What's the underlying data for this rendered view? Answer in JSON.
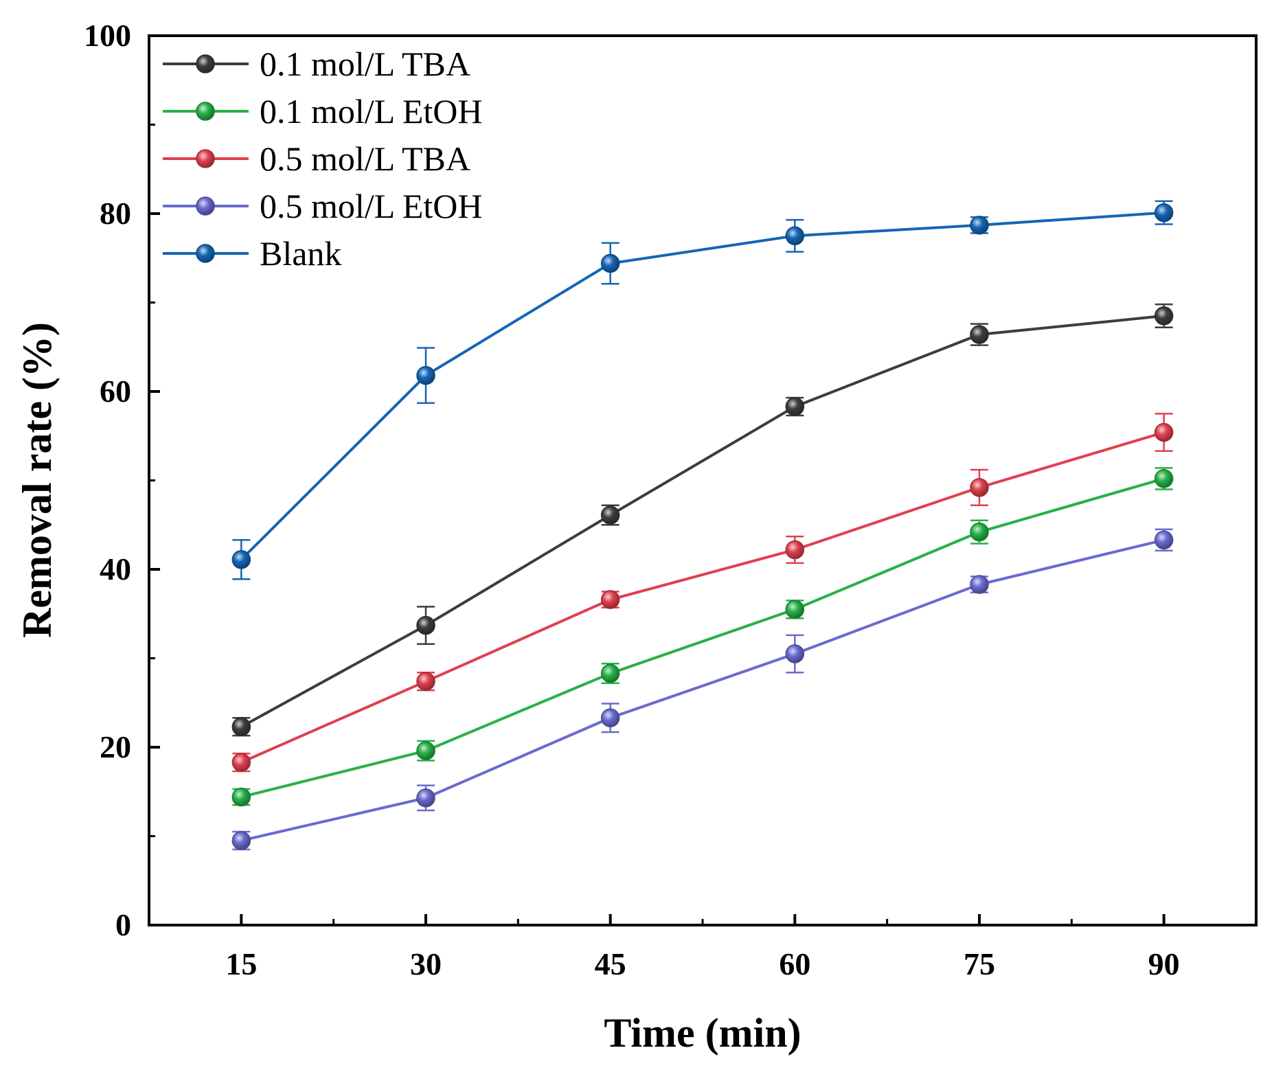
{
  "chart_data": {
    "type": "line",
    "title": "",
    "xlabel": "Time (min)",
    "ylabel": "Removal rate (%)",
    "x": [
      15,
      30,
      45,
      60,
      75,
      90
    ],
    "x_ticks": [
      "15",
      "30",
      "45",
      "60",
      "75",
      "90"
    ],
    "y_ticks": [
      "0",
      "20",
      "40",
      "60",
      "80",
      "100"
    ],
    "xlim": [
      7.5,
      97.5
    ],
    "ylim": [
      0,
      100
    ],
    "grid": false,
    "legend_position": "top-left",
    "series": [
      {
        "name": "0.1 mol/L TBA",
        "color": "#3d3d3d",
        "values": [
          22.3,
          33.7,
          46.1,
          58.3,
          66.4,
          68.5
        ],
        "errors": [
          1.0,
          2.1,
          1.1,
          1.0,
          1.2,
          1.3
        ]
      },
      {
        "name": "0.1 mol/L EtOH",
        "color": "#27b146",
        "values": [
          14.4,
          19.6,
          28.3,
          35.5,
          44.2,
          50.2
        ],
        "errors": [
          0.9,
          1.1,
          1.1,
          1.0,
          1.3,
          1.2
        ]
      },
      {
        "name": "0.5 mol/L TBA",
        "color": "#e0404f",
        "values": [
          18.3,
          27.4,
          36.6,
          42.2,
          49.2,
          55.4
        ],
        "errors": [
          1.0,
          1.0,
          0.9,
          1.5,
          2.0,
          2.1
        ]
      },
      {
        "name": "0.5 mol/L EtOH",
        "color": "#6a6ad0",
        "values": [
          9.5,
          14.3,
          23.3,
          30.5,
          38.3,
          43.3
        ],
        "errors": [
          1.0,
          1.4,
          1.6,
          2.1,
          0.9,
          1.2
        ]
      },
      {
        "name": "Blank",
        "color": "#1565b5",
        "values": [
          41.1,
          61.8,
          74.4,
          77.5,
          78.7,
          80.1
        ],
        "errors": [
          2.2,
          3.1,
          2.3,
          1.8,
          0.9,
          1.3
        ]
      }
    ]
  }
}
